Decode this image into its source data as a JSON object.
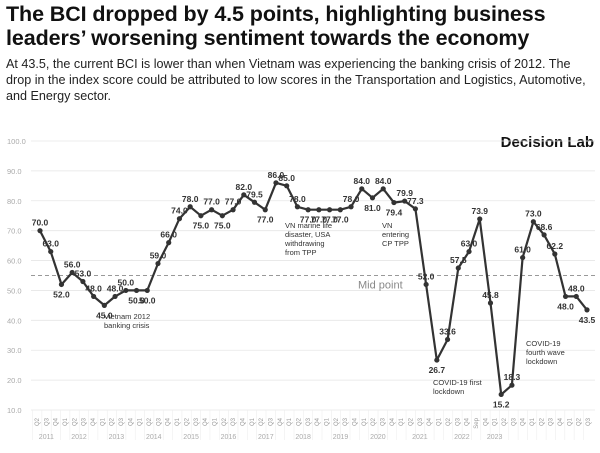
{
  "header": {
    "title_line1": "The BCI dropped by 4.5 points, highlighting business",
    "title_line2": "leaders’ worsening sentiment towards the economy",
    "subtitle": "At 43.5, the current BCI is lower than when Vietnam was experiencing the banking crisis of 2012. The drop in the index score could be attributed to low scores in the Transportation and Logistics, Automotive, and Energy sector.",
    "brand": "Decision Lab"
  },
  "colors": {
    "line": "#333333",
    "marker": "#333333",
    "grid": "#e6e6e6",
    "midline": "#999999"
  },
  "chart_data": {
    "type": "line",
    "title": "The BCI dropped by 4.5 points, highlighting business leaders’ worsening sentiment towards the economy",
    "xlabel": "",
    "ylabel": "",
    "ylim": [
      10,
      100
    ],
    "yticks": [
      "10.0",
      "20.0",
      "30.0",
      "40.0",
      "50.0",
      "60.0",
      "70.0",
      "80.0",
      "90.0",
      "100.0"
    ],
    "grid": true,
    "reference_line": {
      "value": 55,
      "label": "Mid point"
    },
    "quarters": [
      "Q2",
      "Q3",
      "Q4",
      "Q1",
      "Q2",
      "Q3",
      "Q4",
      "Q1",
      "Q2",
      "Q3",
      "Q4",
      "Q1",
      "Q2",
      "Q3",
      "Q4",
      "Q1",
      "Q2",
      "Q3",
      "Q4",
      "Q1",
      "Q2",
      "Q3",
      "Q4",
      "Q1",
      "Q2",
      "Q3",
      "Q4",
      "Q1",
      "Q2",
      "Q3",
      "Q4",
      "Q1",
      "Q2",
      "Q3",
      "Q4",
      "Q1",
      "Q2",
      "Q3",
      "Q4",
      "Q1",
      "Q2",
      "Q3",
      "Q4",
      "Q1",
      "Q2",
      "Q3",
      "Q4",
      "Sep",
      "Q4",
      "Q1",
      "Q2",
      "Q3",
      "Q4",
      "Q1",
      "Q2",
      "Q3",
      "Q4",
      "Q1",
      "Q2",
      "Q3"
    ],
    "years": [
      {
        "label": "2011",
        "count": 3
      },
      {
        "label": "2012",
        "count": 4
      },
      {
        "label": "2013",
        "count": 4
      },
      {
        "label": "2014",
        "count": 4
      },
      {
        "label": "2015",
        "count": 4
      },
      {
        "label": "2016",
        "count": 4
      },
      {
        "label": "2017",
        "count": 4
      },
      {
        "label": "2018",
        "count": 4
      },
      {
        "label": "2019",
        "count": 4
      },
      {
        "label": "2020",
        "count": 4
      },
      {
        "label": "2021",
        "count": 5
      },
      {
        "label": "2022",
        "count": 4
      },
      {
        "label": "2023",
        "count": 3
      }
    ],
    "series": [
      {
        "name": "BCI",
        "values": [
          70.0,
          63.0,
          52.0,
          56.0,
          53.0,
          48.0,
          45.0,
          48.0,
          50.0,
          50.0,
          50.0,
          59.0,
          66.0,
          74.0,
          78.0,
          75.0,
          77.0,
          75.0,
          77.0,
          82.0,
          79.5,
          77.0,
          86.0,
          85.0,
          78.0,
          77.0,
          77.0,
          77.0,
          77.0,
          78.0,
          84.0,
          81.0,
          84.0,
          79.4,
          79.9,
          77.3,
          52.0,
          26.7,
          33.6,
          57.5,
          63.0,
          73.9,
          45.8,
          15.2,
          18.3,
          61.0,
          73.0,
          68.6,
          62.2,
          48.0,
          48.0,
          43.5
        ],
        "labels": [
          "70.0",
          "63.0",
          "52.0",
          "56.0",
          "53.0",
          "48.0",
          "45.0",
          "48.0",
          "50.0",
          "50.0",
          "50.0",
          "59.0",
          "66.0",
          "74.0",
          "78.0",
          "75.0",
          "77.0",
          "75.0",
          "77.0",
          "82.0",
          "79.5",
          "77.0",
          "86.0",
          "85.0",
          "78.0",
          "77.0",
          "77.0",
          "77.0",
          "77.0",
          "78.0",
          "84.0",
          "81.0",
          "84.0",
          "79.4",
          "79.9",
          "77.3",
          "52.0",
          "26.7",
          "33.6",
          "57.5",
          "63.0",
          "73.9",
          "45.8",
          "15.2",
          "18.3",
          "61.0",
          "73.0",
          "68.6",
          "62.2",
          "48.0",
          "48.0",
          "43.5"
        ]
      }
    ],
    "annotations": [
      {
        "text": [
          "Vietnam 2012",
          "banking crisis"
        ]
      },
      {
        "text": [
          "VN marine life",
          "disaster, USA",
          "withdrawing",
          "from TPP"
        ]
      },
      {
        "text": [
          "VN",
          "entering",
          "CP TPP"
        ]
      },
      {
        "text": [
          "COVID-19 first",
          "lockdown"
        ]
      },
      {
        "text": [
          "COVID-19",
          "fourth wave",
          "lockdown"
        ]
      }
    ]
  }
}
